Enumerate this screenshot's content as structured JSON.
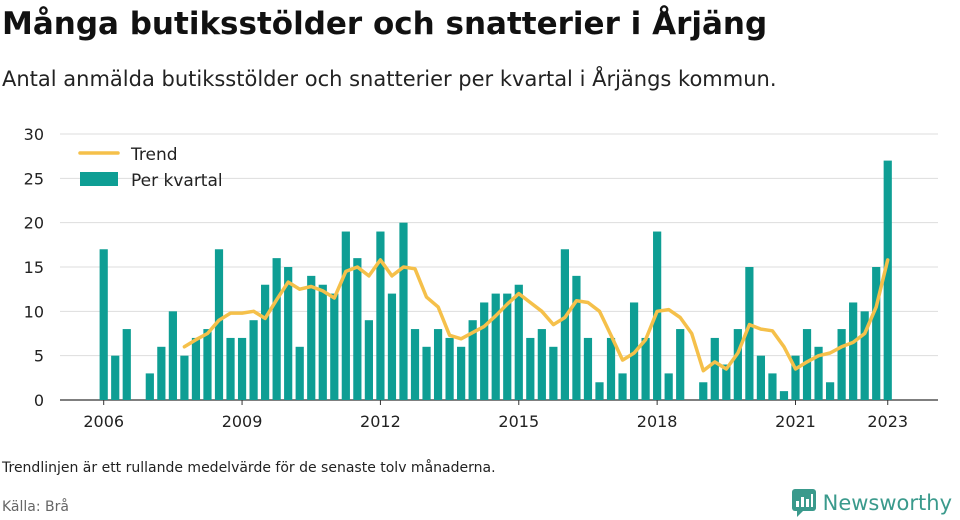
{
  "header": {
    "title": "Många butiksstölder och snatterier i Årjäng",
    "subtitle": "Antal anmälda butiksstölder och snatterier per kvartal i Årjängs kommun."
  },
  "footer": {
    "note": "Trendlinjen är ett rullande medelvärde för de senaste tolv månaderna.",
    "source": "Källa: Brå",
    "brand": "Newsworthy"
  },
  "icons": {
    "brand_logo": "bar-chart-speech-bubble-icon"
  },
  "colors": {
    "bar": "#0e9e94",
    "trend": "#f5c04a",
    "grid": "#dddddd",
    "brand": "#3a9a8c"
  },
  "chart_data": {
    "type": "bar",
    "ylim": [
      0,
      30
    ],
    "yticks": [
      0,
      5,
      10,
      15,
      20,
      25,
      30
    ],
    "xticks": [
      "2006",
      "2009",
      "2012",
      "2015",
      "2018",
      "2021",
      "2023"
    ],
    "grid": true,
    "legend_position": "top-left",
    "legend": {
      "trend": "Trend",
      "bars": "Per kvartal"
    },
    "categories": [
      "2006 Q1",
      "2006 Q2",
      "2006 Q3",
      "2006 Q4",
      "2007 Q1",
      "2007 Q2",
      "2007 Q3",
      "2007 Q4",
      "2008 Q1",
      "2008 Q2",
      "2008 Q3",
      "2008 Q4",
      "2009 Q1",
      "2009 Q2",
      "2009 Q3",
      "2009 Q4",
      "2010 Q1",
      "2010 Q2",
      "2010 Q3",
      "2010 Q4",
      "2011 Q1",
      "2011 Q2",
      "2011 Q3",
      "2011 Q4",
      "2012 Q1",
      "2012 Q2",
      "2012 Q3",
      "2012 Q4",
      "2013 Q1",
      "2013 Q2",
      "2013 Q3",
      "2013 Q4",
      "2014 Q1",
      "2014 Q2",
      "2014 Q3",
      "2014 Q4",
      "2015 Q1",
      "2015 Q2",
      "2015 Q3",
      "2015 Q4",
      "2016 Q1",
      "2016 Q2",
      "2016 Q3",
      "2016 Q4",
      "2017 Q1",
      "2017 Q2",
      "2017 Q3",
      "2017 Q4",
      "2018 Q1",
      "2018 Q2",
      "2018 Q3",
      "2018 Q4",
      "2019 Q1",
      "2019 Q2",
      "2019 Q3",
      "2019 Q4",
      "2020 Q1",
      "2020 Q2",
      "2020 Q3",
      "2020 Q4",
      "2021 Q1",
      "2021 Q2",
      "2021 Q3",
      "2021 Q4",
      "2022 Q1",
      "2022 Q2",
      "2022 Q3",
      "2022 Q4",
      "2023 Q1"
    ],
    "series": [
      {
        "name": "Per kvartal",
        "type": "bar",
        "values": [
          17,
          5,
          8,
          0,
          3,
          6,
          10,
          5,
          7,
          8,
          17,
          7,
          7,
          9,
          13,
          16,
          15,
          6,
          14,
          13,
          12,
          19,
          16,
          9,
          19,
          12,
          20,
          8,
          6,
          8,
          7,
          6,
          9,
          11,
          12,
          12,
          13,
          7,
          8,
          6,
          17,
          14,
          7,
          2,
          7,
          3,
          11,
          7,
          19,
          3,
          8,
          0,
          2,
          7,
          4,
          8,
          15,
          5,
          3,
          1,
          5,
          8,
          6,
          2,
          8,
          11,
          10,
          15,
          27
        ]
      },
      {
        "name": "Trend",
        "type": "line",
        "values": [
          null,
          null,
          null,
          null,
          null,
          null,
          null,
          6.0,
          6.8,
          7.5,
          9.0,
          9.8,
          9.8,
          10.0,
          9.2,
          11.3,
          13.3,
          12.5,
          12.8,
          12.3,
          11.5,
          14.5,
          15.0,
          14.0,
          15.8,
          14.0,
          15.0,
          14.8,
          11.6,
          10.5,
          7.3,
          6.9,
          7.6,
          8.3,
          9.5,
          10.8,
          12.0,
          11.0,
          10.0,
          8.5,
          9.3,
          11.2,
          11.0,
          10.0,
          7.3,
          4.5,
          5.3,
          6.8,
          10.0,
          10.2,
          9.3,
          7.5,
          3.3,
          4.3,
          3.5,
          5.3,
          8.5,
          8.0,
          7.8,
          6.0,
          3.5,
          4.3,
          5.0,
          5.3,
          6.0,
          6.5,
          7.5,
          10.5,
          15.8
        ]
      }
    ]
  }
}
